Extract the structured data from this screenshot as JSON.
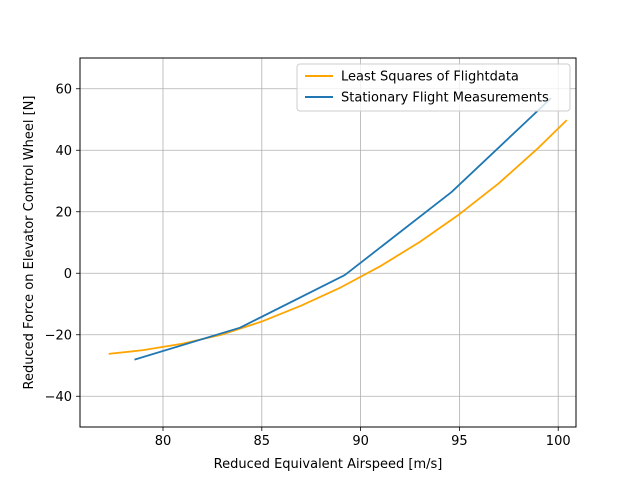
{
  "chart_data": {
    "type": "line",
    "title": "",
    "xlabel": "Reduced Equivalent Airspeed [m/s]",
    "ylabel": "Reduced Force on Elevator Control Wheel [N]",
    "xlim": [
      75.8,
      100.9
    ],
    "ylim": [
      70,
      -50
    ],
    "y_inverted": true,
    "grid": true,
    "legend_position": "upper-right",
    "xticks": [
      80,
      85,
      90,
      95,
      100
    ],
    "xtick_labels": [
      "80",
      "85",
      "90",
      "95",
      "100"
    ],
    "yticks": [
      -40,
      -20,
      0,
      20,
      40,
      60
    ],
    "ytick_labels": [
      "−40",
      "−20",
      "0",
      "20",
      "40",
      "60"
    ],
    "series": [
      {
        "name": "Least Squares of Flightdata",
        "color": "#ffa500",
        "x": [
          77.3,
          79.0,
          81.0,
          83.0,
          85.0,
          87.0,
          89.0,
          91.0,
          93.0,
          95.0,
          97.0,
          99.0,
          100.4
        ],
        "y": [
          -26.2,
          -25.0,
          -22.9,
          -19.9,
          -15.7,
          -10.5,
          -4.6,
          2.3,
          10.2,
          19.2,
          29.3,
          40.8,
          49.6
        ]
      },
      {
        "name": "Stationary Flight Measurements",
        "color": "#1f77b4",
        "x": [
          78.6,
          83.9,
          89.2,
          94.6,
          99.6
        ],
        "y": [
          -28.0,
          -17.7,
          -0.6,
          26.4,
          56.7
        ]
      }
    ]
  }
}
